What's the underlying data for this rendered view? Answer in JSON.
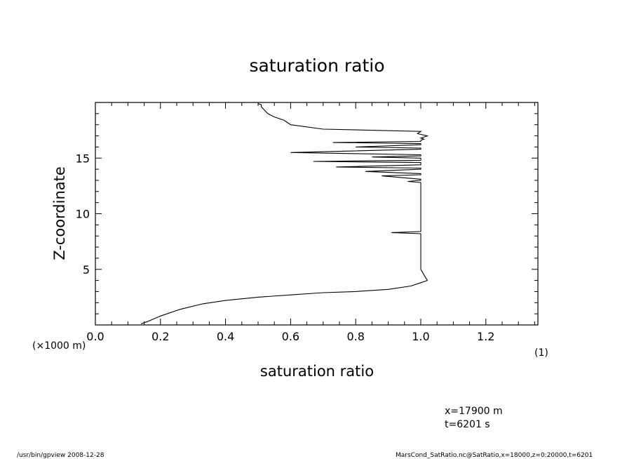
{
  "chart_data": {
    "type": "line",
    "title": "saturation ratio",
    "xlabel": "saturation ratio",
    "ylabel": "Z-coordinate",
    "xunit": "(1)",
    "yunit": "(×1000 m)",
    "xlim": [
      0.0,
      1.36
    ],
    "ylim": [
      0,
      20
    ],
    "xticks": [
      "0.0",
      "0.2",
      "0.4",
      "0.6",
      "0.8",
      "1.0",
      "1.2"
    ],
    "yticks": [
      "5",
      "10",
      "15"
    ],
    "series": [
      {
        "x": [
          0.14,
          0.16,
          0.2,
          0.26,
          0.33,
          0.4,
          0.5,
          0.6,
          0.7,
          0.8,
          0.9,
          0.97,
          1.0,
          1.02,
          1.01,
          1.0,
          1.0,
          1.0,
          1.0,
          1.0,
          1.0,
          0.91,
          1.0,
          1.0,
          1.0,
          1.0,
          1.0,
          1.0,
          0.96,
          1.0,
          1.0,
          0.88,
          1.0,
          1.0,
          0.83,
          1.0,
          1.0,
          0.74,
          1.0,
          1.0,
          0.67,
          1.0,
          1.0,
          0.85,
          1.0,
          1.0,
          0.6,
          1.0,
          1.0,
          0.8,
          1.0,
          1.0,
          0.73,
          1.0,
          1.0,
          1.01,
          1.0,
          1.02,
          0.99,
          1.0,
          0.7,
          0.6,
          0.59,
          0.58,
          0.55,
          0.53,
          0.52,
          0.51,
          0.51,
          0.5
        ],
        "y": [
          0.1,
          0.3,
          0.8,
          1.4,
          1.9,
          2.2,
          2.5,
          2.7,
          2.9,
          3.0,
          3.2,
          3.5,
          3.8,
          4.0,
          4.5,
          5.0,
          6.0,
          7.0,
          7.8,
          8.1,
          8.2,
          8.3,
          8.4,
          9.5,
          10.5,
          11.5,
          12.5,
          12.8,
          12.9,
          13.0,
          13.1,
          13.4,
          13.5,
          13.6,
          13.8,
          14.0,
          14.1,
          14.2,
          14.4,
          14.6,
          14.7,
          14.8,
          15.0,
          15.1,
          15.2,
          15.3,
          15.5,
          15.8,
          15.9,
          16.0,
          16.2,
          16.3,
          16.4,
          16.5,
          16.6,
          16.7,
          16.8,
          17.0,
          17.2,
          17.4,
          17.6,
          18.0,
          18.2,
          18.4,
          18.7,
          19.0,
          19.3,
          19.6,
          19.8,
          19.9
        ]
      }
    ]
  },
  "annotations": {
    "coord_x": "x=17900 m",
    "coord_t": "t=6201 s",
    "footer_left": "/usr/bin/gpview   2008-12-28",
    "footer_right": "MarsCond_SatRatio.nc@SatRatio,x=18000,z=0:20000,t=6201"
  }
}
